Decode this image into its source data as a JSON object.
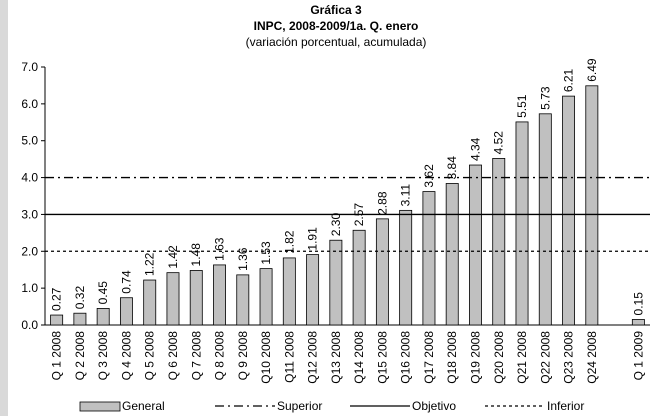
{
  "chart_data": {
    "type": "bar",
    "title": "Gráfica 3",
    "subtitle": "INPC, 2008-2009/1a. Q. enero",
    "note": "(variación porcentual, acumulada)",
    "categories": [
      "Q 1 2008",
      "Q 2 2008",
      "Q 3 2008",
      "Q 4 2008",
      "Q 5 2008",
      "Q 6 2008",
      "Q 7 2008",
      "Q 8 2008",
      "Q 9 2008",
      "Q10 2008",
      "Q11 2008",
      "Q12 2008",
      "Q13 2008",
      "Q14 2008",
      "Q15 2008",
      "Q16 2008",
      "Q17 2008",
      "Q18 2008",
      "Q19 2008",
      "Q20 2008",
      "Q21 2008",
      "Q22 2008",
      "Q23 2008",
      "Q24 2008",
      null,
      "Q 1 2009"
    ],
    "series": [
      {
        "name": "General",
        "color": "#c0c0c0",
        "values": [
          0.27,
          0.32,
          0.45,
          0.74,
          1.22,
          1.42,
          1.48,
          1.63,
          1.36,
          1.53,
          1.82,
          1.91,
          2.3,
          2.57,
          2.88,
          3.11,
          3.62,
          3.84,
          4.34,
          4.52,
          5.51,
          5.73,
          6.21,
          6.49,
          null,
          0.15
        ],
        "value_labels": [
          "0.27",
          "0.32",
          "0.45",
          "0.74",
          "1.22",
          "1.42",
          "1.48",
          "1.63",
          "1.36",
          "1.53",
          "1.82",
          "1.91",
          "2.30",
          "2.57",
          "2.88",
          "3.11",
          "3.62",
          "3.84",
          "4.34",
          "4.52",
          "5.51",
          "5.73",
          "6.21",
          "6.49",
          null,
          "0.15"
        ]
      }
    ],
    "reference_lines": [
      {
        "name": "Superior",
        "value": 4,
        "style": "dash-dot"
      },
      {
        "name": "Objetivo",
        "value": 3,
        "style": "solid"
      },
      {
        "name": "Inferior",
        "value": 2,
        "style": "dotted"
      }
    ],
    "ylim": [
      0,
      7
    ],
    "yticks": [
      {
        "value": 0,
        "label": "0.0"
      },
      {
        "value": 1,
        "label": "1.0"
      },
      {
        "value": 2,
        "label": "2.0"
      },
      {
        "value": 3,
        "label": "3.0"
      },
      {
        "value": 4,
        "label": "4.0"
      },
      {
        "value": 5,
        "label": "5.0"
      },
      {
        "value": 6,
        "label": "6.0"
      },
      {
        "value": 7,
        "label": "7.0"
      }
    ],
    "legend": "bottom"
  }
}
